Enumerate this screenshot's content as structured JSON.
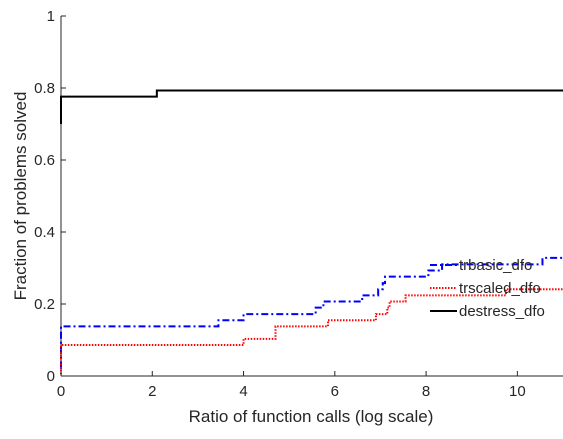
{
  "chart_data": {
    "type": "line",
    "step": true,
    "title": "",
    "xlabel": "Ratio of function calls (log scale)",
    "ylabel": "Fraction of problems solved",
    "xlim": [
      0,
      11
    ],
    "ylim": [
      0,
      1
    ],
    "xticks": [
      "0",
      "2",
      "4",
      "6",
      "8",
      "10"
    ],
    "yticks": [
      "0",
      "0.2",
      "0.4",
      "0.6",
      "0.8",
      "1"
    ],
    "xtick_values": [
      0,
      2,
      4,
      6,
      8,
      10
    ],
    "ytick_values": [
      0,
      0.2,
      0.4,
      0.6,
      0.8,
      1
    ],
    "grid": false,
    "legend_position": "bottom-right",
    "series": [
      {
        "name": "trbasic_dfo",
        "color": "#0000ff",
        "linestyle": "dashdot",
        "points": [
          [
            0,
            0.02
          ],
          [
            0,
            0.138
          ],
          [
            3.45,
            0.138
          ],
          [
            3.45,
            0.155
          ],
          [
            4.0,
            0.155
          ],
          [
            4.0,
            0.172
          ],
          [
            5.58,
            0.172
          ],
          [
            5.58,
            0.19
          ],
          [
            5.75,
            0.19
          ],
          [
            5.75,
            0.207
          ],
          [
            6.6,
            0.207
          ],
          [
            6.6,
            0.224
          ],
          [
            6.95,
            0.224
          ],
          [
            6.95,
            0.241
          ],
          [
            7.05,
            0.241
          ],
          [
            7.05,
            0.258
          ],
          [
            7.1,
            0.258
          ],
          [
            7.1,
            0.276
          ],
          [
            8.05,
            0.276
          ],
          [
            8.05,
            0.293
          ],
          [
            8.35,
            0.293
          ],
          [
            8.35,
            0.31
          ],
          [
            10.55,
            0.31
          ],
          [
            10.55,
            0.328
          ],
          [
            11,
            0.328
          ]
        ]
      },
      {
        "name": "trscaled_dfo",
        "color": "#ff0000",
        "linestyle": "dotted",
        "points": [
          [
            0,
            0.005
          ],
          [
            0,
            0.086
          ],
          [
            4.0,
            0.086
          ],
          [
            4.0,
            0.103
          ],
          [
            4.7,
            0.103
          ],
          [
            4.7,
            0.138
          ],
          [
            5.85,
            0.138
          ],
          [
            5.85,
            0.155
          ],
          [
            6.9,
            0.155
          ],
          [
            6.9,
            0.172
          ],
          [
            7.15,
            0.172
          ],
          [
            7.15,
            0.19
          ],
          [
            7.2,
            0.19
          ],
          [
            7.2,
            0.207
          ],
          [
            7.55,
            0.207
          ],
          [
            7.55,
            0.224
          ],
          [
            9.75,
            0.224
          ],
          [
            9.75,
            0.241
          ],
          [
            11,
            0.241
          ]
        ]
      },
      {
        "name": "destress_dfo",
        "color": "#000000",
        "linestyle": "solid",
        "points": [
          [
            0,
            0.7
          ],
          [
            0,
            0.776
          ],
          [
            2.1,
            0.776
          ],
          [
            2.1,
            0.793
          ],
          [
            11,
            0.793
          ]
        ]
      }
    ]
  }
}
